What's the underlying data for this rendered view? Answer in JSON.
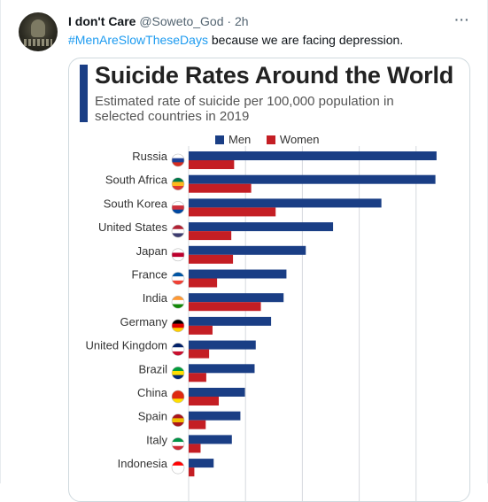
{
  "tweet": {
    "author_name": "I don't Care",
    "handle": "@Soweto_God",
    "time": "· 2h",
    "more_icon": "more-horizontal-icon",
    "hashtag": "#MenAreSlowTheseDays",
    "text": " because we are facing depression."
  },
  "chart_data": {
    "type": "bar",
    "title": "Suicide Rates Around the World",
    "subtitle": "Estimated rate of suicide per 100,000 population in selected countries in 2019",
    "series": [
      {
        "name": "Men",
        "color": "#1a3e85",
        "values": [
          43.6,
          43.4,
          33.9,
          25.4,
          20.6,
          17.2,
          16.7,
          14.5,
          11.8,
          11.6,
          9.9,
          9.1,
          7.6,
          4.4
        ]
      },
      {
        "name": "Women",
        "color": "#c41e24",
        "values": [
          8.0,
          11.0,
          15.3,
          7.5,
          7.8,
          5.0,
          12.7,
          4.2,
          3.6,
          3.1,
          5.3,
          3.0,
          2.1,
          1.0
        ]
      }
    ],
    "categories": [
      "Russia",
      "South Africa",
      "South Korea",
      "United States",
      "Japan",
      "France",
      "India",
      "Germany",
      "United Kingdom",
      "Brazil",
      "China",
      "Spain",
      "Italy",
      "Indonesia"
    ],
    "xlim": [
      0,
      45
    ],
    "orientation": "horizontal",
    "legend_position": "top",
    "grid": true
  }
}
